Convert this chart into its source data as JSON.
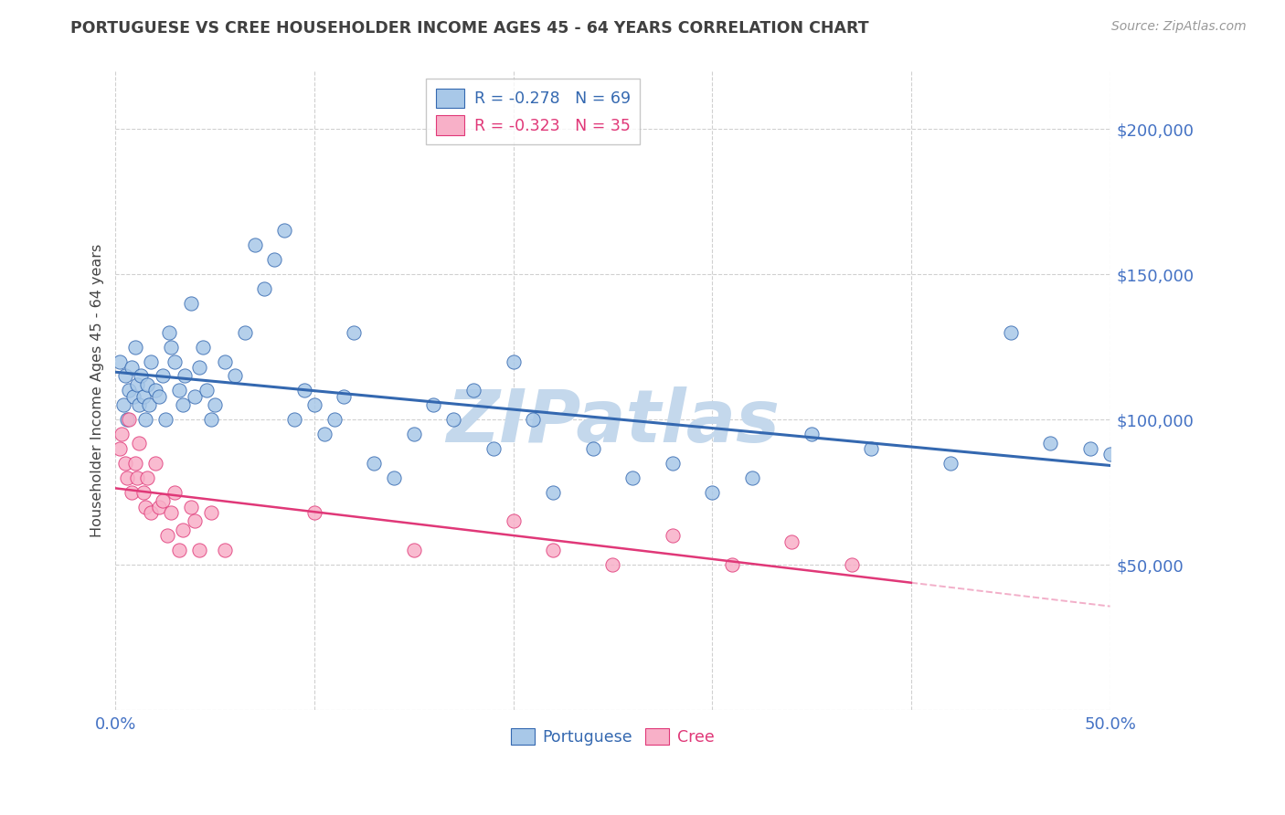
{
  "title": "PORTUGUESE VS CREE HOUSEHOLDER INCOME AGES 45 - 64 YEARS CORRELATION CHART",
  "source": "Source: ZipAtlas.com",
  "ylabel": "Householder Income Ages 45 - 64 years",
  "xlim": [
    0.0,
    0.5
  ],
  "ylim": [
    0,
    220000
  ],
  "portuguese_R": -0.278,
  "portuguese_N": 69,
  "cree_R": -0.323,
  "cree_N": 35,
  "portuguese_color": "#a8c8e8",
  "portuguese_line_color": "#3468b0",
  "cree_color": "#f8b0c8",
  "cree_line_color": "#e03878",
  "watermark": "ZIPatlas",
  "watermark_color": "#c4d8ec",
  "axis_tick_color": "#4472c4",
  "background_color": "#ffffff",
  "title_color": "#404040",
  "source_color": "#999999",
  "portuguese_x": [
    0.002,
    0.004,
    0.005,
    0.006,
    0.007,
    0.008,
    0.009,
    0.01,
    0.011,
    0.012,
    0.013,
    0.014,
    0.015,
    0.016,
    0.017,
    0.018,
    0.02,
    0.022,
    0.024,
    0.025,
    0.027,
    0.028,
    0.03,
    0.032,
    0.034,
    0.035,
    0.038,
    0.04,
    0.042,
    0.044,
    0.046,
    0.048,
    0.05,
    0.055,
    0.06,
    0.065,
    0.07,
    0.075,
    0.08,
    0.085,
    0.09,
    0.095,
    0.1,
    0.105,
    0.11,
    0.115,
    0.12,
    0.13,
    0.14,
    0.15,
    0.16,
    0.17,
    0.18,
    0.19,
    0.2,
    0.21,
    0.22,
    0.24,
    0.26,
    0.28,
    0.3,
    0.32,
    0.35,
    0.38,
    0.42,
    0.45,
    0.47,
    0.49,
    0.5
  ],
  "portuguese_y": [
    120000,
    105000,
    115000,
    100000,
    110000,
    118000,
    108000,
    125000,
    112000,
    105000,
    115000,
    108000,
    100000,
    112000,
    105000,
    120000,
    110000,
    108000,
    115000,
    100000,
    130000,
    125000,
    120000,
    110000,
    105000,
    115000,
    140000,
    108000,
    118000,
    125000,
    110000,
    100000,
    105000,
    120000,
    115000,
    130000,
    160000,
    145000,
    155000,
    165000,
    100000,
    110000,
    105000,
    95000,
    100000,
    108000,
    130000,
    85000,
    80000,
    95000,
    105000,
    100000,
    110000,
    90000,
    120000,
    100000,
    75000,
    90000,
    80000,
    85000,
    75000,
    80000,
    95000,
    90000,
    85000,
    130000,
    92000,
    90000,
    88000
  ],
  "cree_x": [
    0.002,
    0.003,
    0.005,
    0.006,
    0.007,
    0.008,
    0.01,
    0.011,
    0.012,
    0.014,
    0.015,
    0.016,
    0.018,
    0.02,
    0.022,
    0.024,
    0.026,
    0.028,
    0.03,
    0.032,
    0.034,
    0.038,
    0.04,
    0.042,
    0.048,
    0.055,
    0.1,
    0.15,
    0.2,
    0.22,
    0.25,
    0.28,
    0.31,
    0.34,
    0.37
  ],
  "cree_y": [
    90000,
    95000,
    85000,
    80000,
    100000,
    75000,
    85000,
    80000,
    92000,
    75000,
    70000,
    80000,
    68000,
    85000,
    70000,
    72000,
    60000,
    68000,
    75000,
    55000,
    62000,
    70000,
    65000,
    55000,
    68000,
    55000,
    68000,
    55000,
    65000,
    55000,
    50000,
    60000,
    50000,
    58000,
    50000
  ]
}
